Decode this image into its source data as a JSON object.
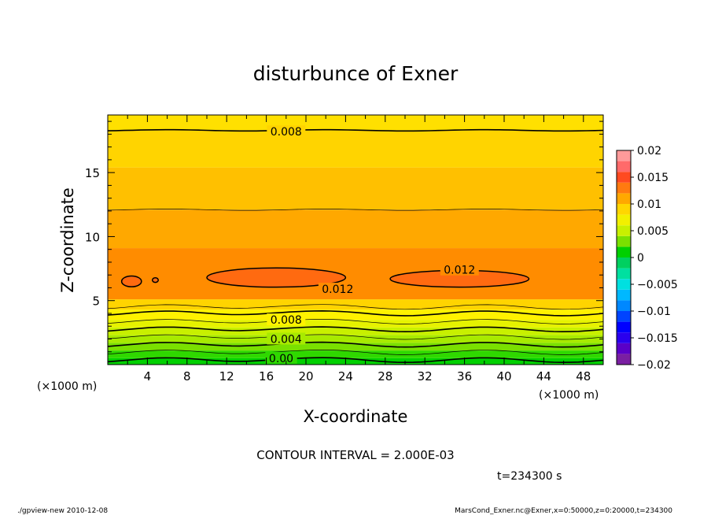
{
  "chart_data": {
    "type": "contour",
    "title": "disturbunce of Exner",
    "xlabel": "X-coordinate",
    "ylabel": "Z-coordinate",
    "x_unit_label": "(×1000 m)",
    "y_unit_label": "(×1000 m)",
    "xlim": [
      0,
      50
    ],
    "ylim": [
      0,
      19.5
    ],
    "x_ticks": [
      4,
      8,
      12,
      16,
      20,
      24,
      28,
      32,
      36,
      40,
      44,
      48
    ],
    "y_ticks": [
      5,
      10,
      15
    ],
    "contour_interval_text": "CONTOUR INTERVAL = 2.000E-03",
    "time_text": "t=234300 s",
    "colorbar": {
      "min": -0.02,
      "max": 0.02,
      "tick_labels": [
        "0.02",
        "0.015",
        "0.01",
        "0.005",
        "0",
        "−0.005",
        "−0.01",
        "−0.015",
        "−0.02"
      ],
      "levels": [
        {
          "lo": -0.02,
          "hi": -0.018,
          "color": "#7a1fa2"
        },
        {
          "lo": -0.018,
          "hi": -0.016,
          "color": "#5a00c8"
        },
        {
          "lo": -0.016,
          "hi": -0.014,
          "color": "#2a00ee"
        },
        {
          "lo": -0.014,
          "hi": -0.012,
          "color": "#0000ff"
        },
        {
          "lo": -0.012,
          "hi": -0.01,
          "color": "#0044ff"
        },
        {
          "lo": -0.01,
          "hi": -0.008,
          "color": "#0088ff"
        },
        {
          "lo": -0.008,
          "hi": -0.006,
          "color": "#00b8ff"
        },
        {
          "lo": -0.006,
          "hi": -0.004,
          "color": "#00e0e0"
        },
        {
          "lo": -0.004,
          "hi": -0.002,
          "color": "#00e0a0"
        },
        {
          "lo": -0.002,
          "hi": 0.0,
          "color": "#00d060"
        },
        {
          "lo": 0.0,
          "hi": 0.002,
          "color": "#00d000"
        },
        {
          "lo": 0.002,
          "hi": 0.004,
          "color": "#7ae000"
        },
        {
          "lo": 0.004,
          "hi": 0.006,
          "color": "#c8f000"
        },
        {
          "lo": 0.006,
          "hi": 0.008,
          "color": "#f2f000"
        },
        {
          "lo": 0.008,
          "hi": 0.01,
          "color": "#ffd600"
        },
        {
          "lo": 0.01,
          "hi": 0.012,
          "color": "#ffa800"
        },
        {
          "lo": 0.012,
          "hi": 0.014,
          "color": "#ff7a10"
        },
        {
          "lo": 0.014,
          "hi": 0.016,
          "color": "#ff4a20"
        },
        {
          "lo": 0.016,
          "hi": 0.018,
          "color": "#ff6a6a"
        },
        {
          "lo": 0.018,
          "hi": 0.02,
          "color": "#ff9a9a"
        }
      ]
    },
    "bands": [
      {
        "z0": 0.0,
        "z1": 0.5,
        "color": "#00d000"
      },
      {
        "z0": 0.5,
        "z1": 1.1,
        "color": "#2fd800"
      },
      {
        "z0": 1.1,
        "z1": 1.7,
        "color": "#7ae000"
      },
      {
        "z0": 1.7,
        "z1": 2.3,
        "color": "#a8ea00"
      },
      {
        "z0": 2.3,
        "z1": 2.9,
        "color": "#c8f000"
      },
      {
        "z0": 2.9,
        "z1": 3.5,
        "color": "#e6f200"
      },
      {
        "z0": 3.5,
        "z1": 4.3,
        "color": "#fff200"
      },
      {
        "z0": 4.3,
        "z1": 5.1,
        "color": "#ffd400"
      },
      {
        "z0": 5.1,
        "z1": 9.1,
        "color": "#ff8c00"
      },
      {
        "z0": 9.1,
        "z1": 12.1,
        "color": "#ffa800"
      },
      {
        "z0": 12.1,
        "z1": 15.4,
        "color": "#ffc000"
      },
      {
        "z0": 15.4,
        "z1": 18.3,
        "color": "#ffd400"
      },
      {
        "z0": 18.3,
        "z1": 19.5,
        "color": "#ffe000"
      }
    ],
    "contour_lines": [
      {
        "z": 0.35,
        "bold": true
      },
      {
        "z": 0.95,
        "bold": false
      },
      {
        "z": 1.55,
        "bold": true
      },
      {
        "z": 2.15,
        "bold": false
      },
      {
        "z": 2.75,
        "bold": true
      },
      {
        "z": 3.35,
        "bold": false
      },
      {
        "z": 4.0,
        "bold": true
      },
      {
        "z": 4.5,
        "bold": false
      },
      {
        "z": 12.1,
        "bold": false
      },
      {
        "z": 18.3,
        "bold": true
      }
    ],
    "closed_contours": [
      {
        "x": 2.4,
        "z": 6.5,
        "rx": 1.0,
        "rz": 0.42,
        "value": "0.012"
      },
      {
        "x": 4.8,
        "z": 6.6,
        "rx": 0.3,
        "rz": 0.18,
        "value": "0.012"
      },
      {
        "x": 17.0,
        "z": 6.8,
        "rx": 7.0,
        "rz": 0.75,
        "value": "0.012"
      },
      {
        "x": 35.5,
        "z": 6.7,
        "rx": 7.0,
        "rz": 0.65,
        "value": "0.012"
      }
    ],
    "contour_labels": [
      {
        "x": 18.0,
        "z": 18.2,
        "text": "0.008"
      },
      {
        "x": 18.0,
        "z": 3.5,
        "text": "0.008"
      },
      {
        "x": 18.0,
        "z": 2.0,
        "text": "0.004"
      },
      {
        "x": 17.5,
        "z": 0.5,
        "text": "0.00"
      },
      {
        "x": 23.2,
        "z": 5.9,
        "text": "0.012"
      },
      {
        "x": 35.5,
        "z": 7.4,
        "text": "0.012"
      }
    ]
  },
  "footer": {
    "left": "./gpview-new   2010-12-08",
    "right": "MarsCond_Exner.nc@Exner,x=0:50000,z=0:20000,t=234300"
  }
}
